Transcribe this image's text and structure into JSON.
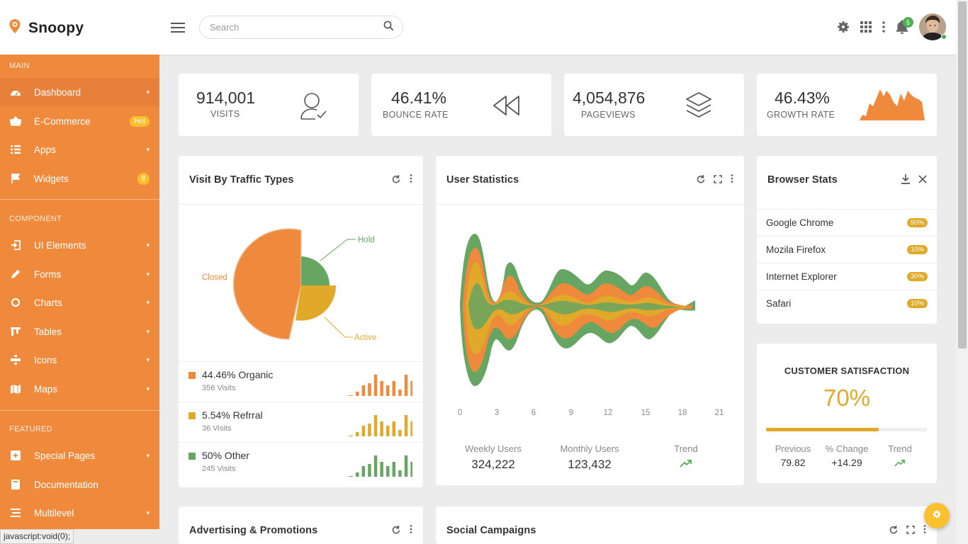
{
  "app": {
    "name": "Snoopy"
  },
  "header": {
    "search_placeholder": "Search",
    "notification_count": "5"
  },
  "sidebar": {
    "sections": [
      {
        "title": "MAIN"
      },
      {
        "title": "COMPONENT"
      },
      {
        "title": "FEATURED"
      }
    ],
    "items": [
      {
        "label": "Dashboard",
        "icon": "dashboard-icon"
      },
      {
        "label": "E-Commerce",
        "icon": "basket-icon",
        "badge": "Hot"
      },
      {
        "label": "Apps",
        "icon": "apps-list-icon"
      },
      {
        "label": "Widgets",
        "icon": "flag-icon",
        "badge": "8"
      },
      {
        "label": "UI Elements",
        "icon": "ui-elements-icon"
      },
      {
        "label": "Forms",
        "icon": "pencil-icon"
      },
      {
        "label": "Charts",
        "icon": "chart-ring-icon"
      },
      {
        "label": "Tables",
        "icon": "table-icon"
      },
      {
        "label": "Icons",
        "icon": "icons-icon"
      },
      {
        "label": "Maps",
        "icon": "map-icon"
      },
      {
        "label": "Special Pages",
        "icon": "special-pages-icon"
      },
      {
        "label": "Documentation",
        "icon": "book-icon"
      },
      {
        "label": "Multilevel",
        "icon": "multilevel-icon"
      }
    ]
  },
  "stats": [
    {
      "value": "914,001",
      "label": "VISITS",
      "icon": "user-check-icon"
    },
    {
      "value": "46.41%",
      "label": "BOUNCE RATE",
      "icon": "rewind-icon"
    },
    {
      "value": "4,054,876",
      "label": "PAGEVIEWS",
      "icon": "layers-icon"
    },
    {
      "value": "46.43%",
      "label": "GROWTH RATE",
      "icon": "area-sparkline"
    }
  ],
  "traffic": {
    "title": "Visit By Traffic Types",
    "pie_labels": [
      "Closed",
      "Hold",
      "Active"
    ],
    "legend": [
      {
        "title": "44.46% Organic",
        "sub": "356 Visits",
        "color": "#ef8a3c",
        "bars": [
          2,
          5,
          6,
          10,
          7,
          5,
          7,
          3,
          10,
          7
        ]
      },
      {
        "title": "5.54% Refrral",
        "sub": "36 Visits",
        "color": "#e1a92a",
        "bars": [
          2,
          5,
          6,
          10,
          7,
          5,
          7,
          3,
          10,
          7
        ]
      },
      {
        "title": "50% Other",
        "sub": "245 Visits",
        "color": "#66a562",
        "bars": [
          2,
          5,
          6,
          10,
          7,
          5,
          7,
          3,
          10,
          7
        ]
      }
    ]
  },
  "user_stats": {
    "title": "User Statistics",
    "xticks": [
      "0",
      "3",
      "6",
      "9",
      "12",
      "15",
      "18",
      "21"
    ],
    "weekly_label": "Weekly Users",
    "weekly_value": "324,222",
    "monthly_label": "Monthly Users",
    "monthly_value": "123,432",
    "trend_label": "Trend"
  },
  "browser": {
    "title": "Browser Stats",
    "rows": [
      {
        "name": "Google Chrome",
        "pct": "50%"
      },
      {
        "name": "Mozila Firefox",
        "pct": "10%"
      },
      {
        "name": "Internet Explorer",
        "pct": "30%"
      },
      {
        "name": "Safari",
        "pct": "10%"
      }
    ]
  },
  "satisfaction": {
    "title": "CUSTOMER SATISFACTION",
    "value": "70%",
    "progress": 0.7,
    "previous_label": "Previous",
    "previous_value": "79.82",
    "change_label": "% Change",
    "change_value": "+14.29",
    "trend_label": "Trend"
  },
  "bottom": {
    "left_title": "Advertising & Promotions",
    "right_title": "Social Campaigns"
  },
  "statusbar": {
    "text": "javascript:void(0);"
  },
  "colors": {
    "accent": "#ef8a3c",
    "yellow": "#e1a92a",
    "green": "#66a562",
    "badge": "#fbc02d"
  }
}
